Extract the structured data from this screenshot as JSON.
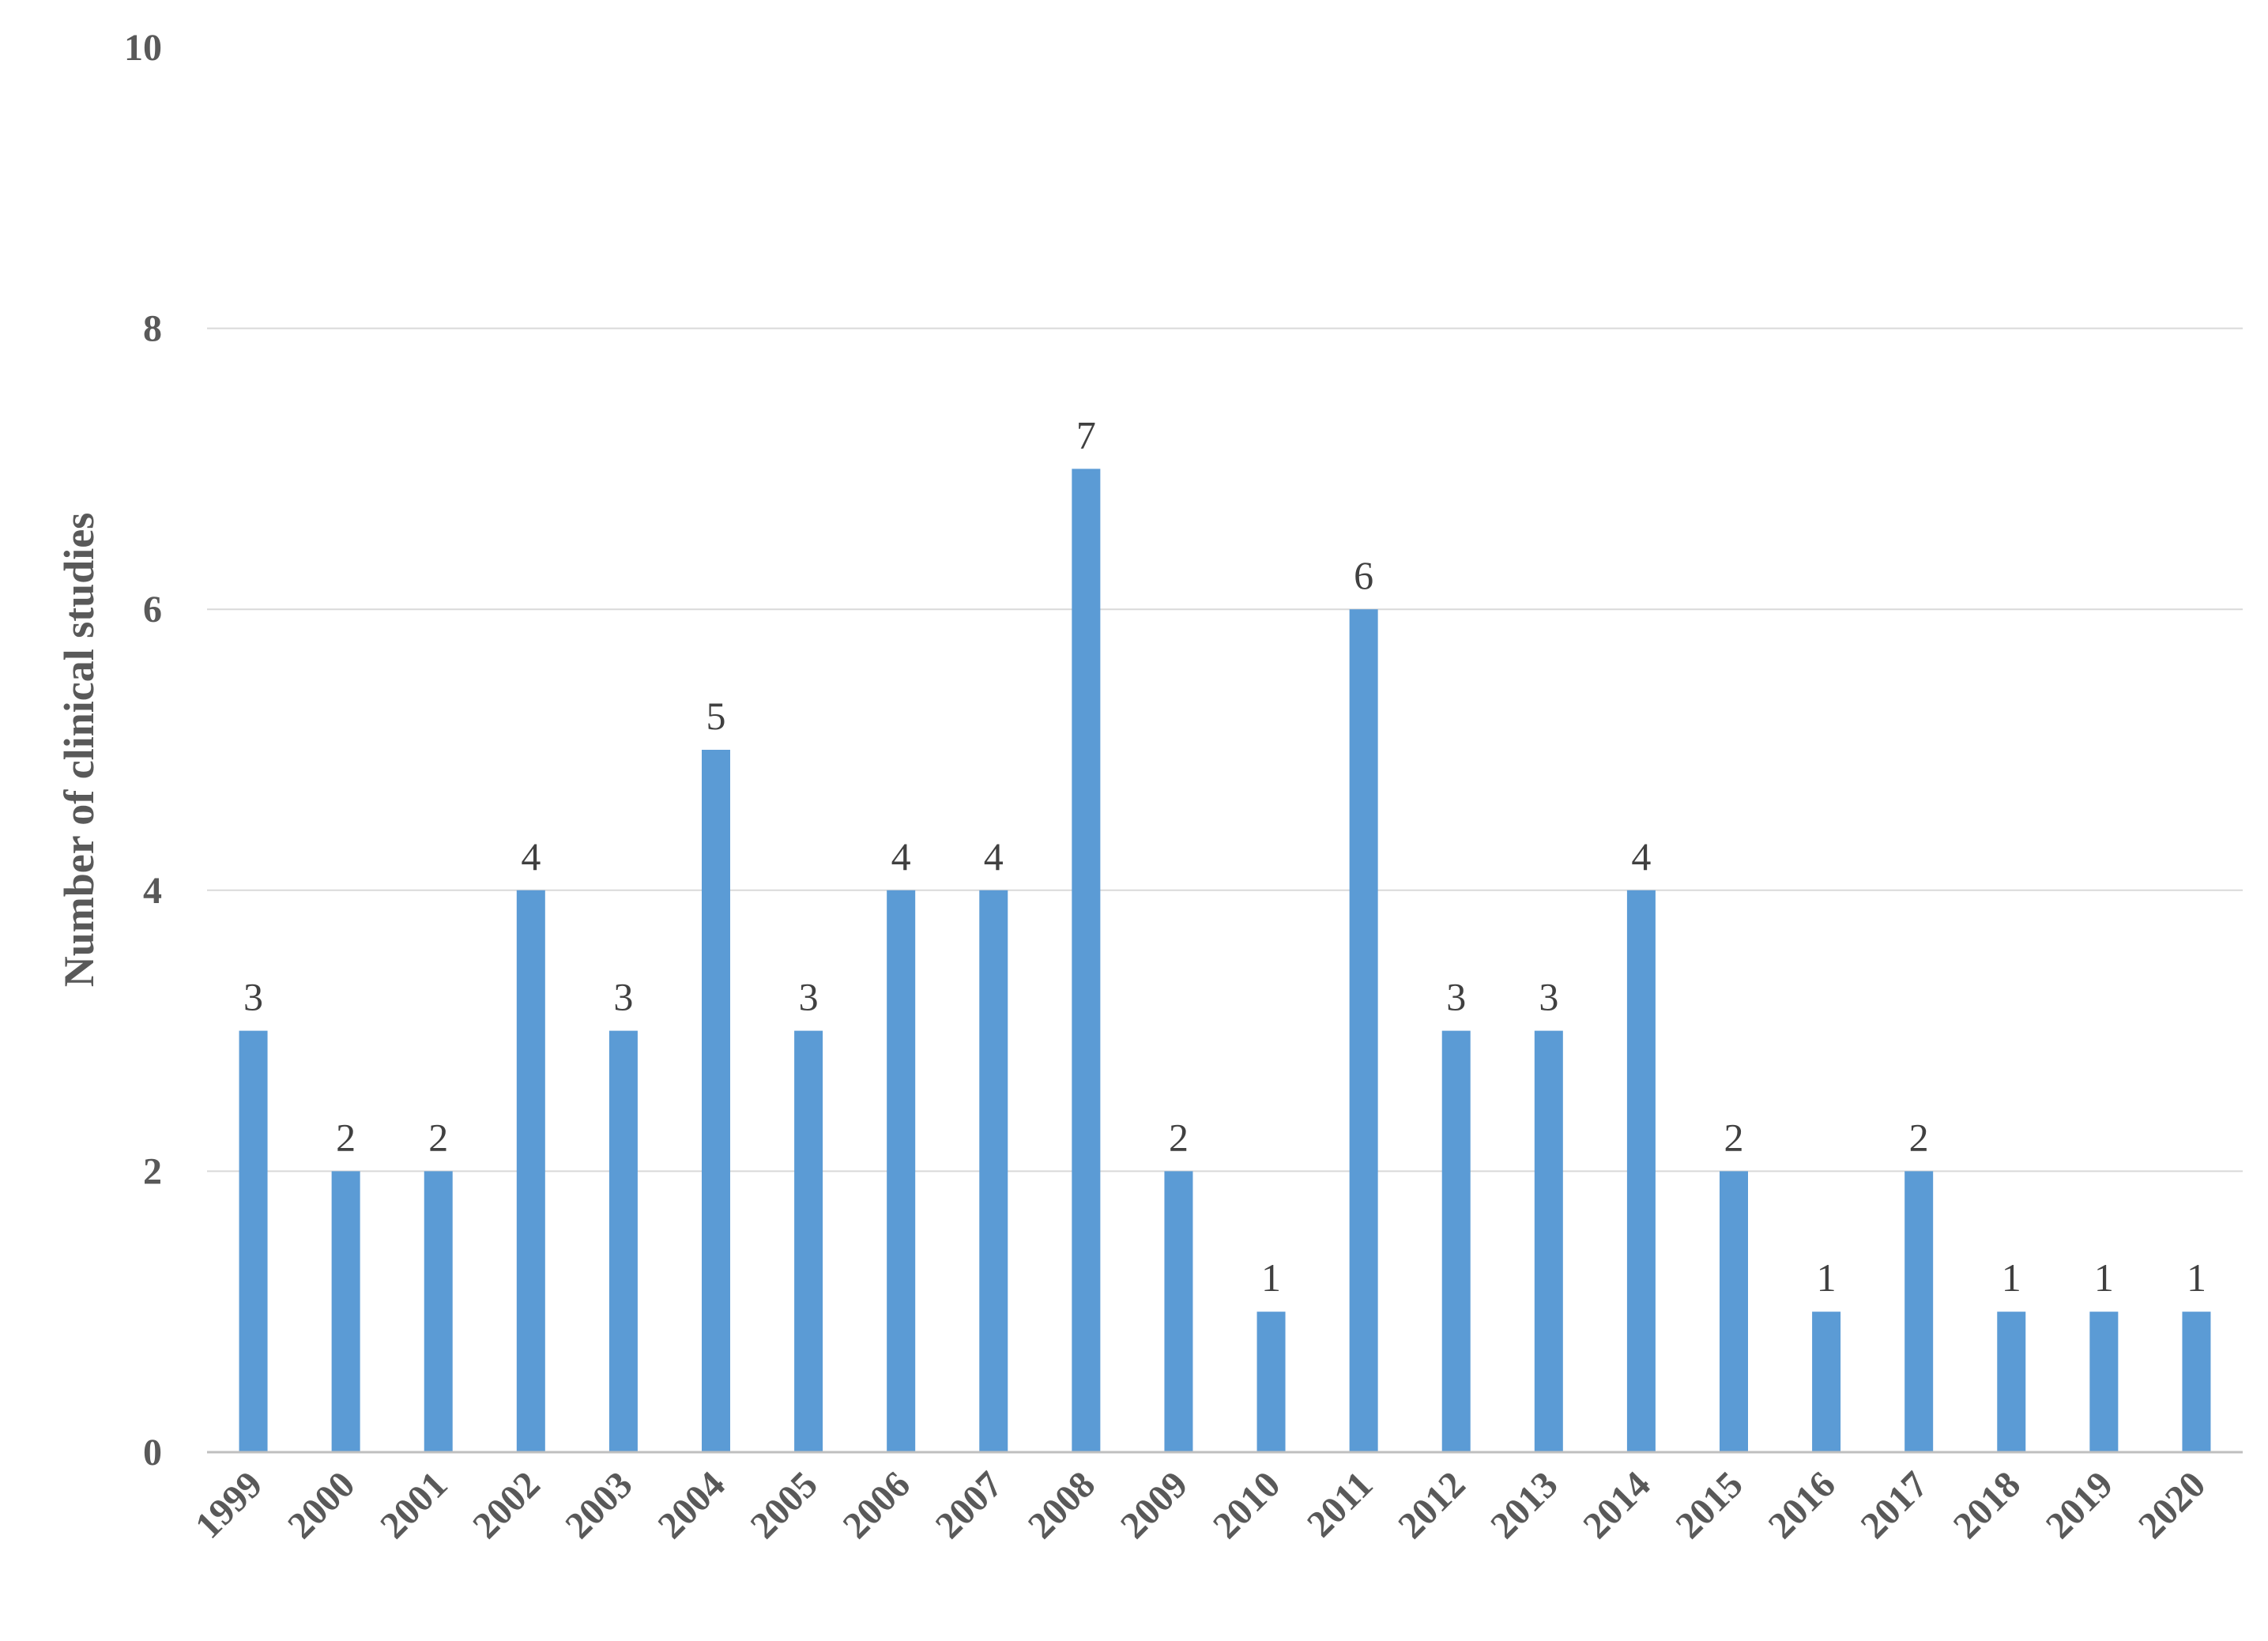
{
  "chart_data": {
    "type": "bar",
    "title": "",
    "xlabel": "",
    "ylabel": "Number of clinical studies",
    "categories": [
      "1999",
      "2000",
      "2001",
      "2002",
      "2003",
      "2004",
      "2005",
      "2006",
      "2007",
      "2008",
      "2009",
      "2010",
      "2011",
      "2012",
      "2013",
      "2014",
      "2015",
      "2016",
      "2017",
      "2018",
      "2019",
      "2020"
    ],
    "values": [
      3,
      2,
      2,
      4,
      3,
      5,
      3,
      4,
      4,
      7,
      2,
      1,
      6,
      3,
      3,
      4,
      2,
      1,
      2,
      1,
      1,
      1
    ],
    "ylim": [
      0,
      10
    ],
    "yticks": [
      0,
      2,
      4,
      6,
      8,
      10
    ],
    "grid": true,
    "legend": "none",
    "data_labels": true,
    "colors": {
      "bar": "#5b9bd5",
      "grid": "#d9d9d9",
      "axis": "#bfbfbf"
    }
  }
}
